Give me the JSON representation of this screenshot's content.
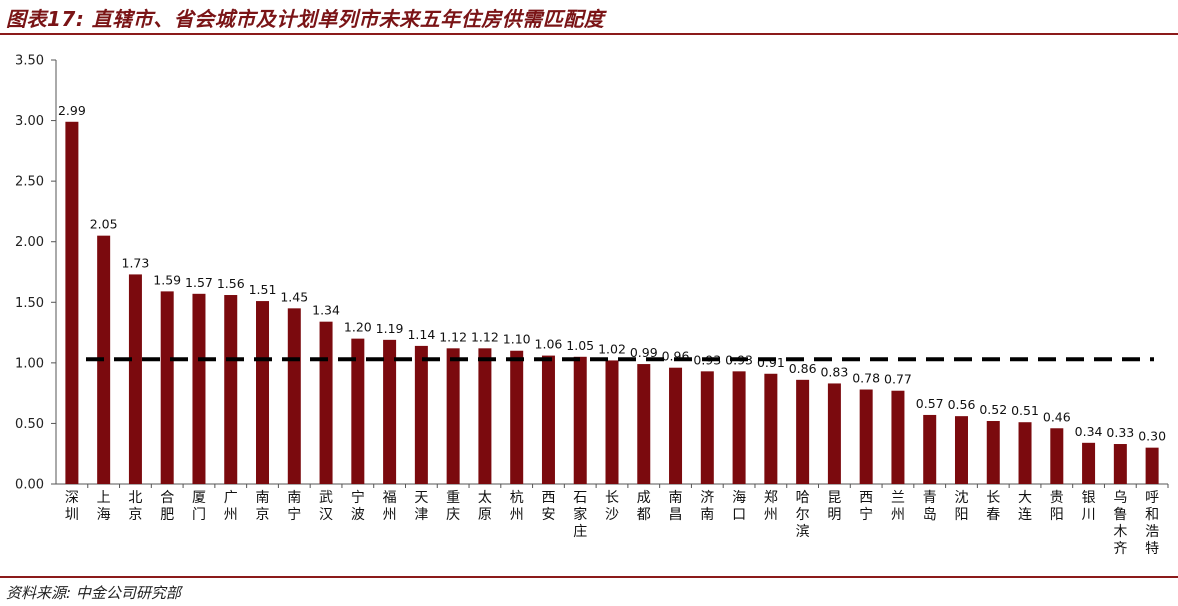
{
  "figure": {
    "title": "图表17: 直辖市、省会城市及计划单列市未来五年住房供需匹配度",
    "source": "资料来源: 中金公司研究部"
  },
  "colors": {
    "bar": "#7b0a0e",
    "reference_line": "#000000",
    "rule": "#8b1a1a",
    "title": "#7a1416"
  },
  "chart_data": {
    "type": "bar",
    "title": "",
    "xlabel": "",
    "ylabel": "",
    "ylim": [
      0,
      3.5
    ],
    "yticks": [
      "0.00",
      "0.50",
      "1.00",
      "1.50",
      "2.00",
      "2.50",
      "3.00",
      "3.50"
    ],
    "grid": false,
    "legend": "none",
    "reference_line": {
      "y": 1.03,
      "style": "dashed"
    },
    "categories": [
      "深圳",
      "上海",
      "北京",
      "合肥",
      "厦门",
      "广州",
      "南京",
      "南宁",
      "武汉",
      "宁波",
      "福州",
      "天津",
      "重庆",
      "太原",
      "杭州",
      "西安",
      "石家庄",
      "长沙",
      "成都",
      "南昌",
      "济南",
      "海口",
      "郑州",
      "哈尔滨",
      "昆明",
      "西宁",
      "兰州",
      "青岛",
      "沈阳",
      "长春",
      "大连",
      "贵阳",
      "银川",
      "乌鲁木齐",
      "呼和浩特"
    ],
    "values": [
      2.99,
      2.05,
      1.73,
      1.59,
      1.57,
      1.56,
      1.51,
      1.45,
      1.34,
      1.2,
      1.19,
      1.14,
      1.12,
      1.12,
      1.1,
      1.06,
      1.05,
      1.02,
      0.99,
      0.96,
      0.93,
      0.93,
      0.91,
      0.86,
      0.83,
      0.78,
      0.77,
      0.57,
      0.56,
      0.52,
      0.51,
      0.46,
      0.34,
      0.33,
      0.3
    ],
    "data_labels": [
      "2.99",
      "2.05",
      "1.73",
      "1.59",
      "1.57",
      "1.56",
      "1.51",
      "1.45",
      "1.34",
      "1.20",
      "1.19",
      "1.14",
      "1.12",
      "1.12",
      "1.10",
      "1.06",
      "1.05",
      "1.02",
      "0.99",
      "0.96",
      "0.93",
      "0.93",
      "0.91",
      "0.86",
      "0.83",
      "0.78",
      "0.77",
      "0.57",
      "0.56",
      "0.52",
      "0.51",
      "0.46",
      "0.34",
      "0.33",
      "0.30"
    ]
  }
}
